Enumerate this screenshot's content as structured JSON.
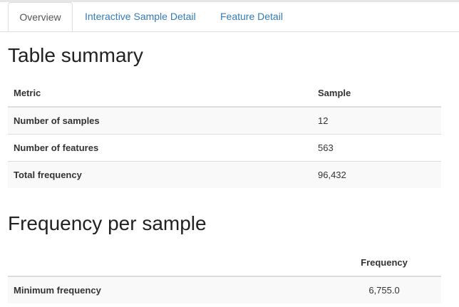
{
  "tabs": [
    {
      "label": "Overview",
      "active": true
    },
    {
      "label": "Interactive Sample Detail",
      "active": false
    },
    {
      "label": "Feature Detail",
      "active": false
    }
  ],
  "summary": {
    "title": "Table summary",
    "headers": {
      "metric": "Metric",
      "sample": "Sample"
    },
    "rows": [
      {
        "metric": "Number of samples",
        "value": "12"
      },
      {
        "metric": "Number of features",
        "value": "563"
      },
      {
        "metric": "Total frequency",
        "value": "96,432"
      }
    ]
  },
  "frequency": {
    "title": "Frequency per sample",
    "headers": {
      "metric": "",
      "frequency": "Frequency"
    },
    "rows": [
      {
        "metric": "Minimum frequency",
        "value": "6,755.0"
      }
    ]
  },
  "colors": {
    "link": "#337ab7",
    "border": "#dddddd",
    "stripe": "#f9f9f9"
  }
}
